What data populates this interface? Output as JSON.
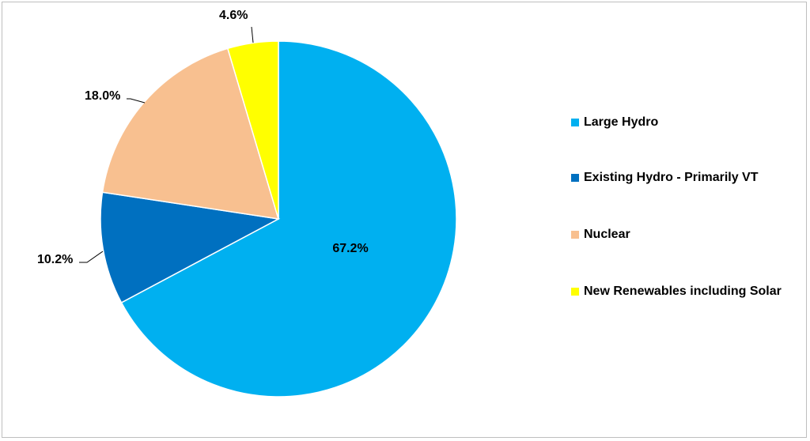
{
  "chart_data": {
    "type": "pie",
    "title": "",
    "slices": [
      {
        "label": "Large Hydro",
        "value": 67.2,
        "value_label": "67.2%",
        "color": "#00b0f0"
      },
      {
        "label": "Existing Hydro - Primarily VT",
        "value": 10.2,
        "value_label": "10.2%",
        "color": "#0070c0"
      },
      {
        "label": "Nuclear",
        "value": 18.0,
        "value_label": "18.0%",
        "color": "#f8c090"
      },
      {
        "label": "New Renewables including Solar",
        "value": 4.6,
        "value_label": "4.6%",
        "color": "#ffff00"
      }
    ],
    "legend_position": "right",
    "start_angle_deg": 0,
    "direction": "clockwise"
  },
  "legend": {
    "items": [
      {
        "label": "Large Hydro",
        "color": "#00b0f0"
      },
      {
        "label": "Existing Hydro - Primarily VT",
        "color": "#0070c0"
      },
      {
        "label": "Nuclear",
        "color": "#f8c090"
      },
      {
        "label": "New Renewables including Solar",
        "color": "#ffff00"
      }
    ]
  }
}
